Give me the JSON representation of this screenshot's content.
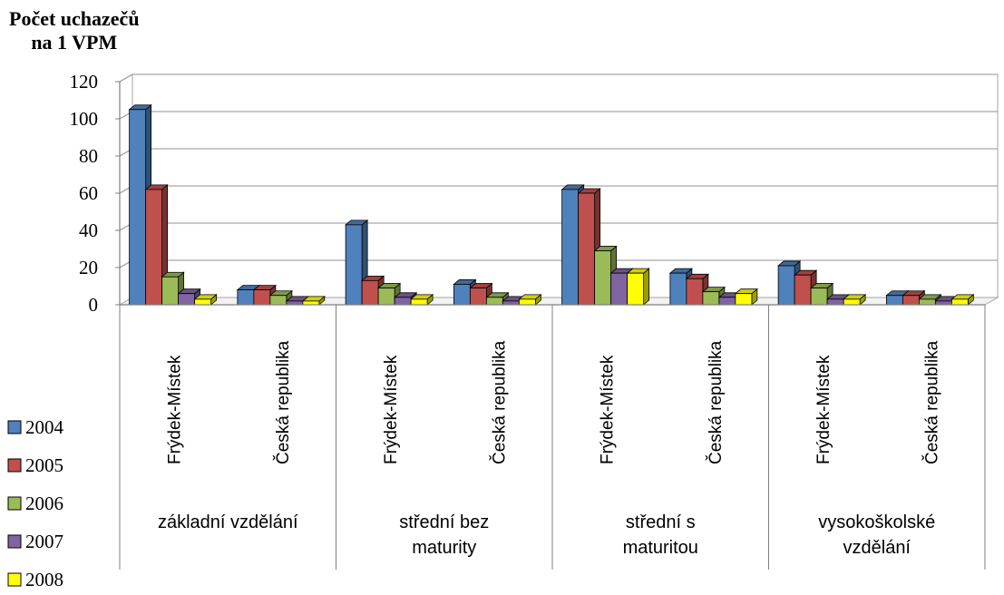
{
  "chart_data": {
    "type": "bar",
    "ylabel": "Počet uchazečů na 1 VPM",
    "ylabel_lines": [
      "Počet uchazečů",
      "na 1 VPM"
    ],
    "ylim": [
      0,
      120
    ],
    "yticks": [
      0,
      20,
      40,
      60,
      80,
      100,
      120
    ],
    "grid": true,
    "legend_position": "bottom-left",
    "groups": [
      {
        "label_lines": [
          "základní vzdělání"
        ],
        "subcategories": [
          "Frýdek-Místek",
          "Česká republika"
        ]
      },
      {
        "label_lines": [
          "střední bez",
          "maturity"
        ],
        "subcategories": [
          "Frýdek-Místek",
          "Česká republika"
        ]
      },
      {
        "label_lines": [
          "střední s",
          "maturitou"
        ],
        "subcategories": [
          "Frýdek-Místek",
          "Česká republika"
        ]
      },
      {
        "label_lines": [
          "vysokoškolské",
          "vzdělání"
        ],
        "subcategories": [
          "Frýdek-Místek",
          "Česká republika"
        ]
      }
    ],
    "categories": [
      "základní vzdělání – Frýdek-Místek",
      "základní vzdělání – Česká republika",
      "střední bez maturity – Frýdek-Místek",
      "střední bez maturity – Česká republika",
      "střední s maturitou – Frýdek-Místek",
      "střední s maturitou – Česká republika",
      "vysokoškolské vzdělání – Frýdek-Místek",
      "vysokoškolské vzdělání – Česká republika"
    ],
    "series": [
      {
        "name": "2004",
        "color": "#4F81BD",
        "values": [
          105,
          8,
          43,
          11,
          62,
          17,
          21,
          5
        ]
      },
      {
        "name": "2005",
        "color": "#C0504D",
        "values": [
          62,
          8,
          13,
          9,
          60,
          14,
          16,
          5
        ]
      },
      {
        "name": "2006",
        "color": "#9BBB59",
        "values": [
          15,
          5,
          9,
          4,
          29,
          7,
          9,
          3
        ]
      },
      {
        "name": "2007",
        "color": "#8064A2",
        "values": [
          6,
          2,
          4,
          2,
          17,
          4,
          3,
          2
        ]
      },
      {
        "name": "2008",
        "color": "#FFFF00",
        "values": [
          3,
          2,
          3,
          3,
          17,
          6,
          3,
          3
        ]
      }
    ]
  }
}
